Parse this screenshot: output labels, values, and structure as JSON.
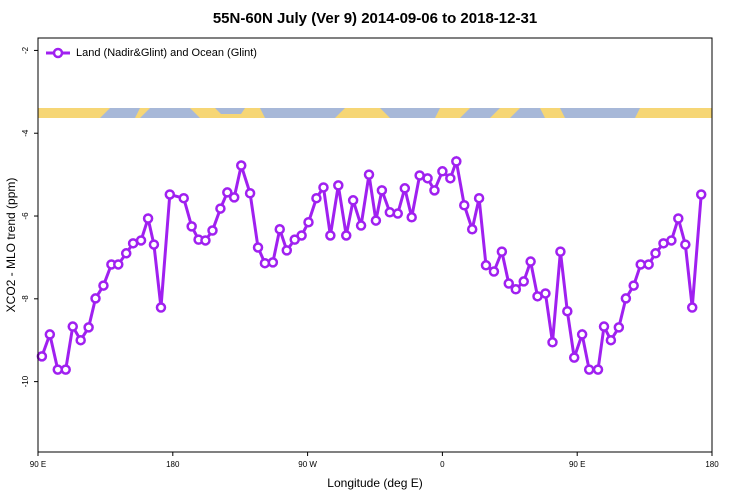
{
  "chart_data": {
    "type": "line",
    "title": "55N-60N July (Ver 9)   2014-09-06 to 2018-12-31",
    "x_label": "Longitude (deg E)",
    "y_label": "XCO2 - MLO trend (ppm)",
    "xlim": [
      90,
      540
    ],
    "ylim": [
      -11.7,
      -1.7
    ],
    "xticks": [
      {
        "value": 90,
        "label": "90 E"
      },
      {
        "value": 180,
        "label": "180"
      },
      {
        "value": 270,
        "label": "90 W"
      },
      {
        "value": 360,
        "label": "0"
      },
      {
        "value": 450,
        "label": "90 E"
      },
      {
        "value": 540,
        "label": "180"
      }
    ],
    "yticks": [
      -2,
      -4,
      -6,
      -8,
      -10
    ],
    "legend": "top-left",
    "x": [
      92.6,
      97.9,
      103.2,
      108.5,
      113.2,
      118.5,
      123.8,
      128.4,
      133.7,
      139.0,
      143.6,
      148.9,
      153.5,
      158.8,
      163.5,
      167.4,
      172.1,
      178.0,
      187.3,
      192.6,
      197.2,
      201.8,
      206.5,
      211.8,
      216.4,
      221.0,
      225.7,
      231.6,
      236.9,
      241.5,
      246.8,
      251.4,
      256.1,
      261.4,
      266.0,
      270.6,
      275.9,
      280.6,
      285.2,
      290.5,
      295.8,
      300.4,
      305.7,
      311.0,
      315.6,
      319.6,
      324.9,
      330.2,
      334.9,
      339.5,
      344.8,
      350.1,
      354.7,
      360.0,
      365.3,
      369.3,
      374.6,
      379.9,
      384.5,
      389.1,
      394.4,
      399.7,
      404.3,
      409.0,
      414.3,
      418.9,
      423.5,
      428.8,
      433.5,
      438.8,
      443.4,
      448.0,
      453.3,
      458.0,
      463.9,
      467.9,
      472.5,
      477.8,
      482.5,
      487.7,
      492.4,
      497.7,
      502.3,
      507.6,
      512.9,
      517.5,
      522.2,
      526.8,
      532.8
    ],
    "series": [
      {
        "name": "Land (Nadir&Glint) and Ocean (Glint)",
        "color": "#a020f0",
        "values": [
          -9.39,
          -8.86,
          -9.71,
          -9.71,
          -8.67,
          -9.0,
          -8.69,
          -7.99,
          -7.68,
          -7.17,
          -7.17,
          -6.9,
          -6.66,
          -6.59,
          -6.06,
          -6.69,
          -8.21,
          -5.48,
          -5.57,
          -6.25,
          -6.57,
          -6.59,
          -6.35,
          -5.82,
          -5.43,
          -5.55,
          -4.78,
          -5.45,
          -6.76,
          -7.14,
          -7.12,
          -6.32,
          -6.83,
          -6.57,
          -6.47,
          -6.15,
          -5.57,
          -5.31,
          -6.47,
          -5.26,
          -6.47,
          -5.62,
          -6.23,
          -5.0,
          -6.11,
          -5.38,
          -5.91,
          -5.94,
          -5.33,
          -6.03,
          -5.02,
          -5.09,
          -5.38,
          -4.92,
          -5.09,
          -4.68,
          -5.74,
          -6.32,
          -5.57,
          -7.19,
          -7.34,
          -6.86,
          -7.63,
          -7.77,
          -7.58,
          -7.1,
          -7.94,
          -7.87,
          -9.05,
          -6.86,
          -8.3,
          -9.42,
          -8.86,
          -9.71,
          -9.71,
          -8.67,
          -9.0,
          -8.69,
          -7.99,
          -7.68,
          -7.17,
          -7.17,
          -6.9,
          -6.66,
          -6.59,
          -6.06,
          -6.69,
          -8.21,
          -5.48
        ]
      }
    ]
  }
}
